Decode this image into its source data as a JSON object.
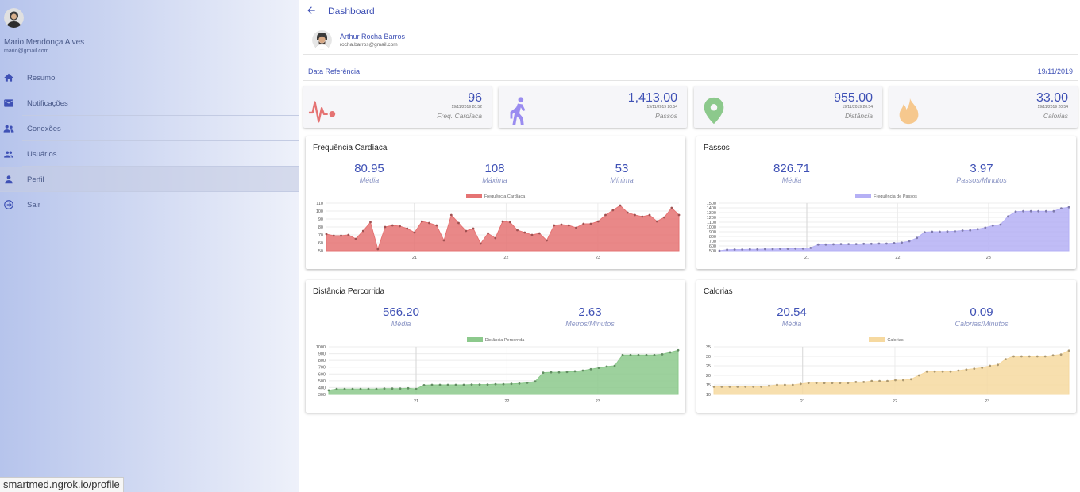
{
  "sidebar": {
    "user_name": "Mario Mendonça Alves",
    "user_email": "mario@gmail.com",
    "items": [
      {
        "label": "Resumo",
        "icon": "home-icon"
      },
      {
        "label": "Notificações",
        "icon": "mail-icon"
      },
      {
        "label": "Conexões",
        "icon": "connections-icon"
      },
      {
        "label": "Usuários",
        "icon": "users-icon"
      },
      {
        "label": "Perfil",
        "icon": "person-icon"
      },
      {
        "label": "Sair",
        "icon": "logout-icon"
      }
    ]
  },
  "header": {
    "title": "Dashboard"
  },
  "patient": {
    "name": "Arthur Rocha Barros",
    "email": "rocha.barros@gmail.com"
  },
  "reference": {
    "label": "Data Referência",
    "date": "19/11/2019"
  },
  "summary": [
    {
      "value": "96",
      "timestamp": "19/11/2019 20:52",
      "label": "Freq. Cardíaca",
      "icon": "heart-rate-icon",
      "color": "#e57373"
    },
    {
      "value": "1,413.00",
      "timestamp": "19/11/2019 20:54",
      "label": "Passos",
      "icon": "walking-icon",
      "color": "#9a8cf0"
    },
    {
      "value": "955.00",
      "timestamp": "19/11/2019 20:54",
      "label": "Distância",
      "icon": "location-pin-icon",
      "color": "#8cc98c"
    },
    {
      "value": "33.00",
      "timestamp": "19/11/2019 20:54",
      "label": "Calorias",
      "icon": "flame-icon",
      "color": "#f6c88e"
    }
  ],
  "cards": {
    "heart": {
      "title": "Frequência Cardíaca",
      "stats": [
        {
          "value": "80.95",
          "label": "Média"
        },
        {
          "value": "108",
          "label": "Máxima"
        },
        {
          "value": "53",
          "label": "Mínima"
        }
      ]
    },
    "steps": {
      "title": "Passos",
      "stats": [
        {
          "value": "826.71",
          "label": "Média"
        },
        {
          "value": "3.97",
          "label": "Passos/Minutos"
        }
      ]
    },
    "distance": {
      "title": "Distância Percorrida",
      "stats": [
        {
          "value": "566.20",
          "label": "Média"
        },
        {
          "value": "2.63",
          "label": "Metros/Minutos"
        }
      ]
    },
    "calories": {
      "title": "Calorias",
      "stats": [
        {
          "value": "20.54",
          "label": "Média"
        },
        {
          "value": "0.09",
          "label": "Calorias/Minutos"
        }
      ]
    }
  },
  "status_url": "smartmed.ngrok.io/profile",
  "chart_data": [
    {
      "type": "area",
      "series": [
        {
          "name": "Frequência Cardíaca",
          "color": "#e57373",
          "values": [
            71,
            69,
            69,
            70,
            65,
            75,
            86,
            52,
            80,
            82,
            81,
            78,
            73,
            87,
            85,
            82,
            63,
            95,
            85,
            75,
            78,
            59,
            72,
            66,
            87,
            86,
            76,
            73,
            70,
            72,
            63,
            82,
            83,
            82,
            79,
            84,
            84,
            87,
            95,
            101,
            107,
            98,
            95,
            93,
            95,
            87,
            92,
            104,
            95
          ]
        }
      ],
      "x_ticks": [
        "21",
        "22",
        "23"
      ],
      "ylim": [
        50,
        110
      ],
      "y_ticks": [
        50,
        60,
        70,
        80,
        90,
        100,
        110
      ]
    },
    {
      "type": "area",
      "series": [
        {
          "name": "Frequência de Passos",
          "color": "#b5b0f5",
          "values": [
            500,
            520,
            525,
            525,
            530,
            530,
            535,
            535,
            540,
            540,
            545,
            545,
            560,
            630,
            630,
            635,
            640,
            640,
            640,
            645,
            645,
            650,
            650,
            660,
            670,
            700,
            770,
            890,
            900,
            900,
            905,
            910,
            925,
            930,
            955,
            985,
            1030,
            1050,
            1220,
            1320,
            1330,
            1330,
            1330,
            1330,
            1330,
            1390,
            1413
          ]
        }
      ],
      "x_ticks": [
        "21",
        "22",
        "23"
      ],
      "ylim": [
        500,
        1500
      ],
      "y_ticks": [
        500,
        600,
        700,
        800,
        900,
        1000,
        1100,
        1200,
        1300,
        1400,
        1500
      ]
    },
    {
      "type": "area",
      "series": [
        {
          "name": "Distância Percorrida",
          "color": "#8cc98c",
          "values": [
            360,
            380,
            380,
            380,
            380,
            380,
            380,
            385,
            385,
            385,
            390,
            380,
            435,
            440,
            440,
            440,
            440,
            440,
            445,
            445,
            445,
            450,
            450,
            455,
            460,
            470,
            490,
            620,
            625,
            625,
            630,
            640,
            650,
            670,
            690,
            710,
            720,
            880,
            880,
            880,
            880,
            880,
            890,
            920,
            950
          ]
        }
      ],
      "x_ticks": [
        "21",
        "22",
        "23"
      ],
      "ylim": [
        300,
        1000
      ],
      "y_ticks": [
        300,
        400,
        500,
        600,
        700,
        800,
        900,
        1000
      ]
    },
    {
      "type": "area",
      "series": [
        {
          "name": "Calorias",
          "color": "#f6d9a0",
          "values": [
            14,
            14,
            14,
            14,
            14,
            14,
            14,
            14.5,
            15,
            15,
            15,
            15.5,
            16,
            16,
            16,
            16,
            16,
            16,
            16.5,
            16.5,
            17,
            17,
            17,
            17.5,
            17.5,
            18,
            20,
            22,
            22,
            22,
            22,
            22.5,
            23,
            23.5,
            24,
            25,
            25.5,
            28.5,
            30,
            30,
            30,
            30,
            30,
            30.5,
            31,
            33
          ]
        }
      ],
      "x_ticks": [
        "21",
        "22",
        "23"
      ],
      "ylim": [
        10,
        35
      ],
      "y_ticks": [
        10,
        15,
        20,
        25,
        30,
        35
      ]
    }
  ]
}
